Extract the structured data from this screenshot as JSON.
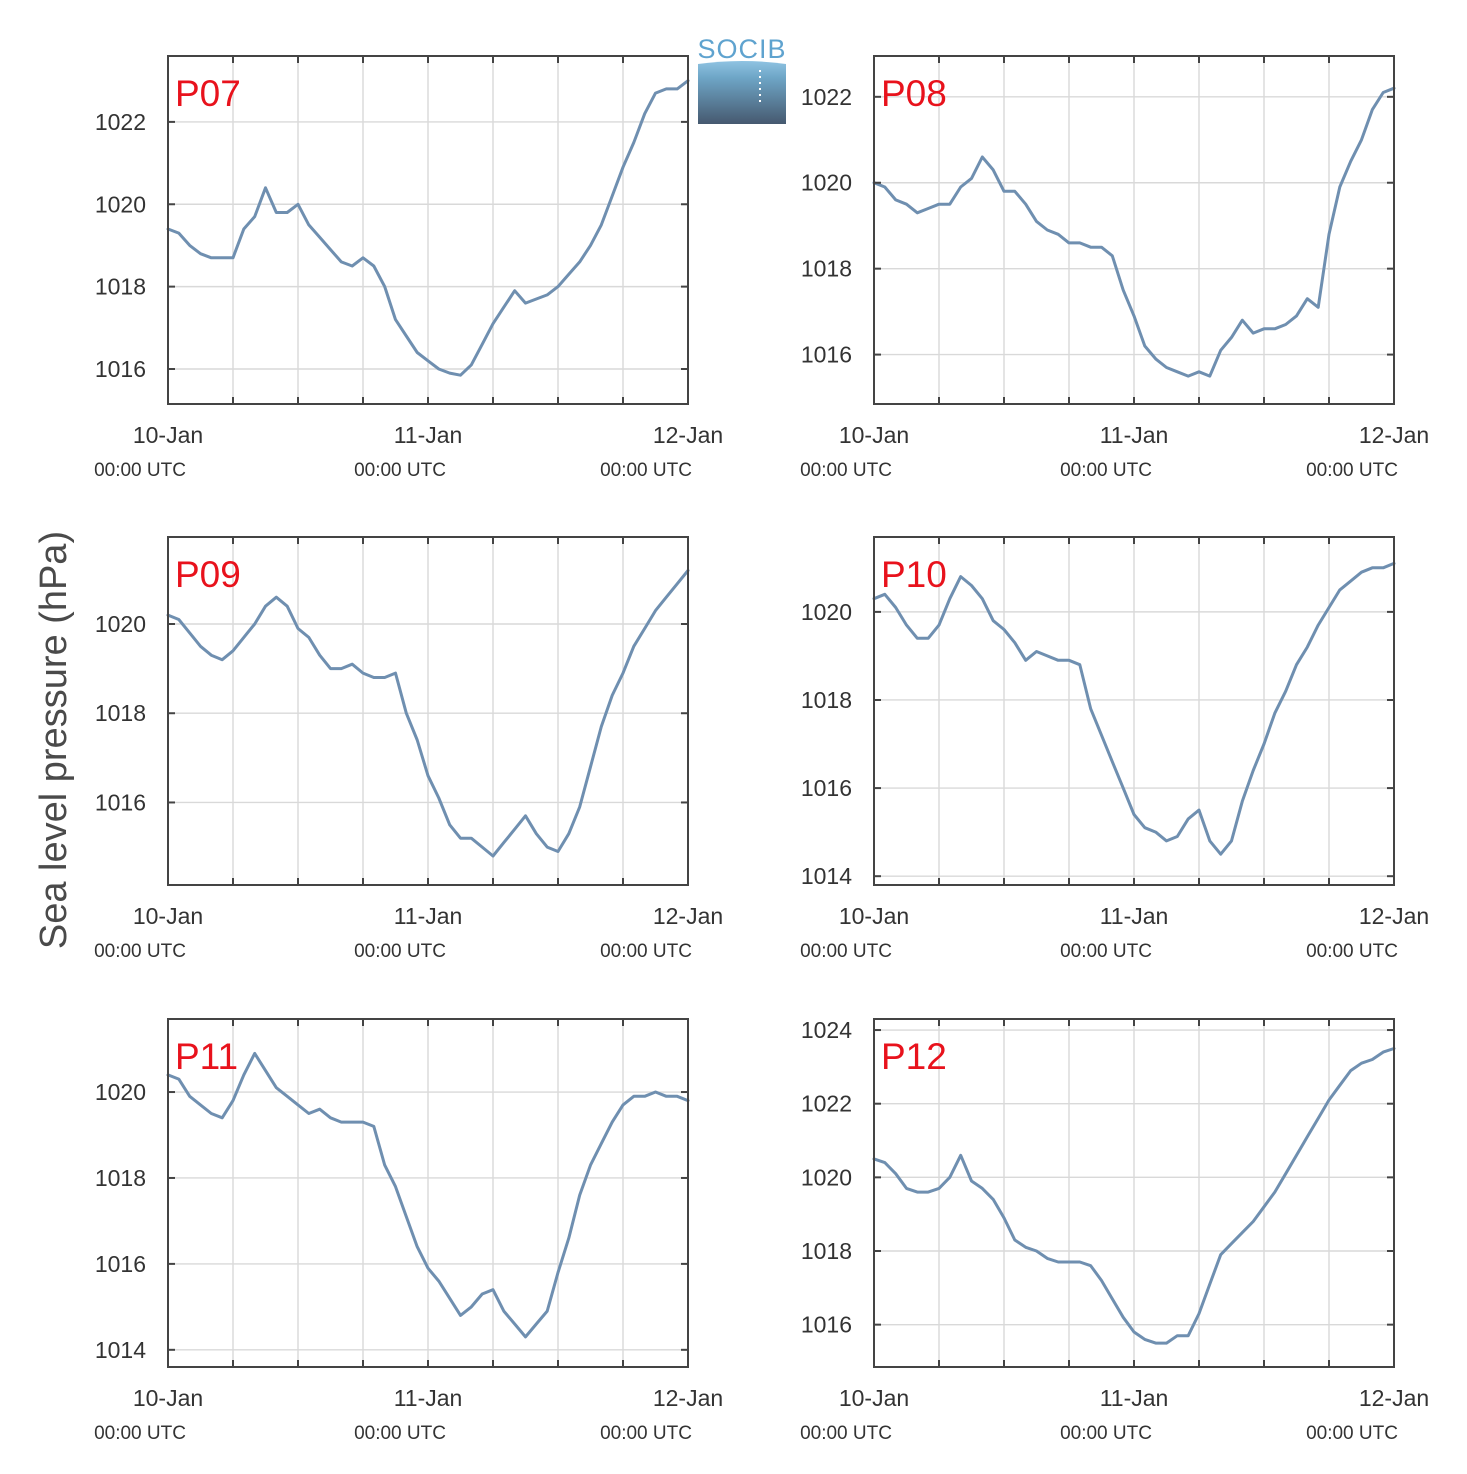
{
  "figure": {
    "ylabel": "Sea level pressure (hPa)",
    "logo_text": "SOCIB"
  },
  "colors": {
    "line": "#6f8fb0",
    "station_label": "#e8121c",
    "grid": "#d9d9d9",
    "axis": "#444444"
  },
  "chart_data": [
    {
      "type": "line",
      "title": "P07",
      "x_ticks": [
        "10-Jan",
        "11-Jan",
        "12-Jan"
      ],
      "x_tick_sub": "00:00 UTC",
      "x_range_hours": [
        0,
        48
      ],
      "ylim": [
        1015.15,
        1023.6
      ],
      "y_ticks": [
        1016,
        1018,
        1020,
        1022
      ],
      "grid": true,
      "x": [
        0,
        1,
        2,
        3,
        4,
        5,
        6,
        7,
        8,
        9,
        10,
        11,
        12,
        13,
        14,
        15,
        16,
        17,
        18,
        19,
        20,
        21,
        22,
        23,
        24,
        25,
        26,
        27,
        28,
        29,
        30,
        31,
        32,
        33,
        34,
        35,
        36,
        37,
        38,
        39,
        40,
        41,
        42,
        43,
        44,
        45,
        46,
        47,
        48
      ],
      "values": [
        1019.4,
        1019.3,
        1019.0,
        1018.8,
        1018.7,
        1018.7,
        1018.7,
        1019.4,
        1019.7,
        1020.4,
        1019.8,
        1019.8,
        1020.0,
        1019.5,
        1019.2,
        1018.9,
        1018.6,
        1018.5,
        1018.7,
        1018.5,
        1018.0,
        1017.2,
        1016.8,
        1016.4,
        1016.2,
        1016.0,
        1015.9,
        1015.85,
        1016.1,
        1016.6,
        1017.1,
        1017.5,
        1017.9,
        1017.6,
        1017.7,
        1017.8,
        1018.0,
        1018.3,
        1018.6,
        1019.0,
        1019.5,
        1020.2,
        1020.9,
        1021.5,
        1022.2,
        1022.7,
        1022.8,
        1022.8,
        1023.0
      ]
    },
    {
      "type": "line",
      "title": "P08",
      "x_ticks": [
        "10-Jan",
        "11-Jan",
        "12-Jan"
      ],
      "x_tick_sub": "00:00 UTC",
      "x_range_hours": [
        0,
        48
      ],
      "ylim": [
        1014.85,
        1022.95
      ],
      "y_ticks": [
        1016,
        1018,
        1020,
        1022
      ],
      "grid": true,
      "x": [
        0,
        1,
        2,
        3,
        4,
        5,
        6,
        7,
        8,
        9,
        10,
        11,
        12,
        13,
        14,
        15,
        16,
        17,
        18,
        19,
        20,
        21,
        22,
        23,
        24,
        25,
        26,
        27,
        28,
        29,
        30,
        31,
        32,
        33,
        34,
        35,
        36,
        37,
        38,
        39,
        40,
        41,
        42,
        43,
        44,
        45,
        46,
        47,
        48
      ],
      "values": [
        1020.0,
        1019.9,
        1019.6,
        1019.5,
        1019.3,
        1019.4,
        1019.5,
        1019.5,
        1019.9,
        1020.1,
        1020.6,
        1020.3,
        1019.8,
        1019.8,
        1019.5,
        1019.1,
        1018.9,
        1018.8,
        1018.6,
        1018.6,
        1018.5,
        1018.5,
        1018.3,
        1017.5,
        1016.9,
        1016.2,
        1015.9,
        1015.7,
        1015.6,
        1015.5,
        1015.6,
        1015.5,
        1016.1,
        1016.4,
        1016.8,
        1016.5,
        1016.6,
        1016.6,
        1016.7,
        1016.9,
        1017.3,
        1017.1,
        1018.8,
        1019.9,
        1020.5,
        1021.0,
        1021.7,
        1022.1,
        1022.2
      ]
    },
    {
      "type": "line",
      "title": "P09",
      "x_ticks": [
        "10-Jan",
        "11-Jan",
        "12-Jan"
      ],
      "x_tick_sub": "00:00 UTC",
      "x_range_hours": [
        0,
        48
      ],
      "ylim": [
        1014.15,
        1021.95
      ],
      "y_ticks": [
        1016,
        1018,
        1020
      ],
      "grid": true,
      "x": [
        0,
        1,
        2,
        3,
        4,
        5,
        6,
        7,
        8,
        9,
        10,
        11,
        12,
        13,
        14,
        15,
        16,
        17,
        18,
        19,
        20,
        21,
        22,
        23,
        24,
        25,
        26,
        27,
        28,
        29,
        30,
        31,
        32,
        33,
        34,
        35,
        36,
        37,
        38,
        39,
        40,
        41,
        42,
        43,
        44,
        45,
        46,
        47,
        48
      ],
      "values": [
        1020.2,
        1020.1,
        1019.8,
        1019.5,
        1019.3,
        1019.2,
        1019.4,
        1019.7,
        1020.0,
        1020.4,
        1020.6,
        1020.4,
        1019.9,
        1019.7,
        1019.3,
        1019.0,
        1019.0,
        1019.1,
        1018.9,
        1018.8,
        1018.8,
        1018.9,
        1018.0,
        1017.4,
        1016.6,
        1016.1,
        1015.5,
        1015.2,
        1015.2,
        1015.0,
        1014.8,
        1015.1,
        1015.4,
        1015.7,
        1015.3,
        1015.0,
        1014.9,
        1015.3,
        1015.9,
        1016.8,
        1017.7,
        1018.4,
        1018.9,
        1019.5,
        1019.9,
        1020.3,
        1020.6,
        1020.9,
        1021.2
      ]
    },
    {
      "type": "line",
      "title": "P10",
      "x_ticks": [
        "10-Jan",
        "11-Jan",
        "12-Jan"
      ],
      "x_tick_sub": "00:00 UTC",
      "x_range_hours": [
        0,
        48
      ],
      "ylim": [
        1013.8,
        1021.7
      ],
      "y_ticks": [
        1014,
        1016,
        1018,
        1020
      ],
      "grid": true,
      "x": [
        0,
        1,
        2,
        3,
        4,
        5,
        6,
        7,
        8,
        9,
        10,
        11,
        12,
        13,
        14,
        15,
        16,
        17,
        18,
        19,
        20,
        21,
        22,
        23,
        24,
        25,
        26,
        27,
        28,
        29,
        30,
        31,
        32,
        33,
        34,
        35,
        36,
        37,
        38,
        39,
        40,
        41,
        42,
        43,
        44,
        45,
        46,
        47,
        48
      ],
      "values": [
        1020.3,
        1020.4,
        1020.1,
        1019.7,
        1019.4,
        1019.4,
        1019.7,
        1020.3,
        1020.8,
        1020.6,
        1020.3,
        1019.8,
        1019.6,
        1019.3,
        1018.9,
        1019.1,
        1019.0,
        1018.9,
        1018.9,
        1018.8,
        1017.8,
        1017.2,
        1016.6,
        1016.0,
        1015.4,
        1015.1,
        1015.0,
        1014.8,
        1014.9,
        1015.3,
        1015.5,
        1014.8,
        1014.5,
        1014.8,
        1015.7,
        1016.4,
        1017.0,
        1017.7,
        1018.2,
        1018.8,
        1019.2,
        1019.7,
        1020.1,
        1020.5,
        1020.7,
        1020.9,
        1021.0,
        1021.0,
        1021.1
      ]
    },
    {
      "type": "line",
      "title": "P11",
      "x_ticks": [
        "10-Jan",
        "11-Jan",
        "12-Jan"
      ],
      "x_tick_sub": "00:00 UTC",
      "x_range_hours": [
        0,
        48
      ],
      "ylim": [
        1013.6,
        1021.7
      ],
      "y_ticks": [
        1014,
        1016,
        1018,
        1020
      ],
      "grid": true,
      "x": [
        0,
        1,
        2,
        3,
        4,
        5,
        6,
        7,
        8,
        9,
        10,
        11,
        12,
        13,
        14,
        15,
        16,
        17,
        18,
        19,
        20,
        21,
        22,
        23,
        24,
        25,
        26,
        27,
        28,
        29,
        30,
        31,
        32,
        33,
        34,
        35,
        36,
        37,
        38,
        39,
        40,
        41,
        42,
        43,
        44,
        45,
        46,
        47,
        48
      ],
      "values": [
        1020.4,
        1020.3,
        1019.9,
        1019.7,
        1019.5,
        1019.4,
        1019.8,
        1020.4,
        1020.9,
        1020.5,
        1020.1,
        1019.9,
        1019.7,
        1019.5,
        1019.6,
        1019.4,
        1019.3,
        1019.3,
        1019.3,
        1019.2,
        1018.3,
        1017.8,
        1017.1,
        1016.4,
        1015.9,
        1015.6,
        1015.2,
        1014.8,
        1015.0,
        1015.3,
        1015.4,
        1014.9,
        1014.6,
        1014.3,
        1014.6,
        1014.9,
        1015.8,
        1016.6,
        1017.6,
        1018.3,
        1018.8,
        1019.3,
        1019.7,
        1019.9,
        1019.9,
        1020.0,
        1019.9,
        1019.9,
        1019.8
      ]
    },
    {
      "type": "line",
      "title": "P12",
      "x_ticks": [
        "10-Jan",
        "11-Jan",
        "12-Jan"
      ],
      "x_tick_sub": "00:00 UTC",
      "x_range_hours": [
        0,
        48
      ],
      "ylim": [
        1014.85,
        1024.3
      ],
      "y_ticks": [
        1016,
        1018,
        1020,
        1022,
        1024
      ],
      "grid": true,
      "x": [
        0,
        1,
        2,
        3,
        4,
        5,
        6,
        7,
        8,
        9,
        10,
        11,
        12,
        13,
        14,
        15,
        16,
        17,
        18,
        19,
        20,
        21,
        22,
        23,
        24,
        25,
        26,
        27,
        28,
        29,
        30,
        31,
        32,
        33,
        34,
        35,
        36,
        37,
        38,
        39,
        40,
        41,
        42,
        43,
        44,
        45,
        46,
        47,
        48
      ],
      "values": [
        1020.5,
        1020.4,
        1020.1,
        1019.7,
        1019.6,
        1019.6,
        1019.7,
        1020.0,
        1020.6,
        1019.9,
        1019.7,
        1019.4,
        1018.9,
        1018.3,
        1018.1,
        1018.0,
        1017.8,
        1017.7,
        1017.7,
        1017.7,
        1017.6,
        1017.2,
        1016.7,
        1016.2,
        1015.8,
        1015.6,
        1015.5,
        1015.5,
        1015.7,
        1015.7,
        1016.3,
        1017.1,
        1017.9,
        1018.2,
        1018.5,
        1018.8,
        1019.2,
        1019.6,
        1020.1,
        1020.6,
        1021.1,
        1021.6,
        1022.1,
        1022.5,
        1022.9,
        1023.1,
        1023.2,
        1023.4,
        1023.5
      ]
    }
  ]
}
